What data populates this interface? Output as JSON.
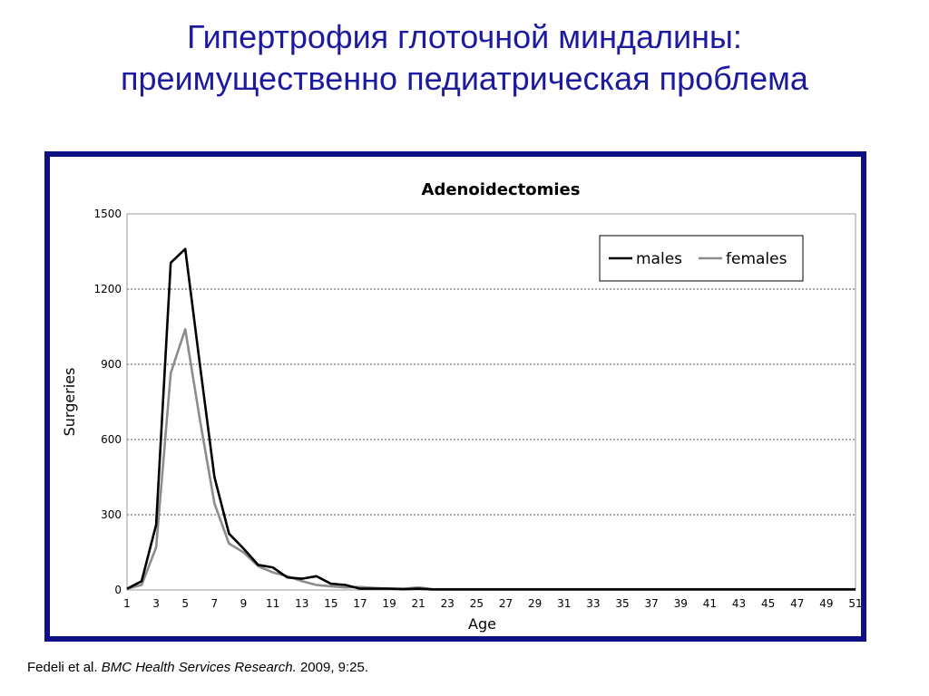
{
  "slide": {
    "title_line1": "Гипертрофия глоточной миндалины:",
    "title_line2": "преимущественно педиатрическая проблема"
  },
  "citation": {
    "authors": "Fedeli et al.",
    "journal": "BMC Health Services Research.",
    "details": "2009, 9:25."
  },
  "chart_data": {
    "type": "line",
    "title": "Adenoidectomies",
    "xlabel": "Age",
    "ylabel": "Surgeries",
    "ylim": [
      0,
      1500
    ],
    "xlim": [
      1,
      51
    ],
    "yticks": [
      0,
      300,
      600,
      900,
      1200,
      1500
    ],
    "xticks": [
      1,
      3,
      5,
      7,
      9,
      11,
      13,
      15,
      17,
      19,
      21,
      23,
      25,
      27,
      29,
      31,
      33,
      35,
      37,
      39,
      41,
      43,
      45,
      47,
      49,
      51
    ],
    "grid": "horizontal",
    "legend_position": "top-right",
    "colors": {
      "males": "#000000",
      "females": "#8c8c8c"
    },
    "x": [
      1,
      2,
      3,
      4,
      5,
      6,
      7,
      8,
      9,
      10,
      11,
      12,
      13,
      14,
      15,
      16,
      17,
      18,
      19,
      20,
      21,
      22,
      23,
      24,
      25,
      26,
      27,
      28,
      29,
      30,
      31,
      32,
      33,
      34,
      35,
      36,
      37,
      38,
      39,
      40,
      41,
      42,
      43,
      44,
      45,
      46,
      47,
      48,
      49,
      50,
      51
    ],
    "series": [
      {
        "name": "males",
        "values": [
          5,
          35,
          260,
          1305,
          1360,
          900,
          450,
          225,
          165,
          100,
          90,
          50,
          45,
          55,
          25,
          20,
          5,
          5,
          5,
          3,
          5,
          2,
          2,
          2,
          2,
          2,
          2,
          2,
          2,
          2,
          2,
          2,
          2,
          2,
          2,
          2,
          2,
          2,
          2,
          2,
          2,
          2,
          2,
          2,
          2,
          2,
          2,
          2,
          2,
          2,
          2
        ]
      },
      {
        "name": "females",
        "values": [
          5,
          20,
          170,
          865,
          1040,
          680,
          345,
          185,
          150,
          95,
          70,
          55,
          35,
          20,
          15,
          10,
          12,
          8,
          5,
          5,
          10,
          3,
          3,
          3,
          3,
          3,
          3,
          3,
          3,
          3,
          3,
          3,
          3,
          3,
          3,
          3,
          3,
          3,
          3,
          3,
          3,
          3,
          3,
          3,
          3,
          3,
          3,
          3,
          3,
          3,
          3
        ]
      }
    ]
  }
}
